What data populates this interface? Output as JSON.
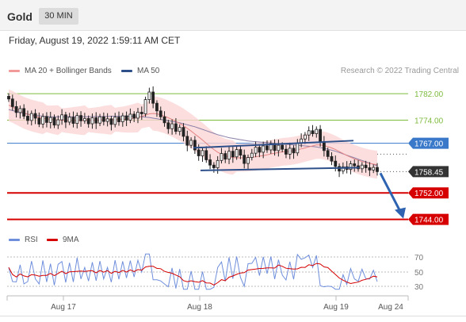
{
  "header": {
    "title": "Gold",
    "timeframe": "30 MIN"
  },
  "timestamp": "Friday, August 19, 2022 1:59:11 AM CET",
  "legend": [
    {
      "label": "MA 20 + Bollinger Bands",
      "color": "#f29a9a"
    },
    {
      "label": "MA 50",
      "color": "#2d4f8a"
    }
  ],
  "credit": "Research © 2022 Trading Central",
  "price_levels": [
    {
      "value": "1782.00",
      "kind": "resistance-minor",
      "color": "#7dbb3d"
    },
    {
      "value": "1774.00",
      "kind": "resistance-minor",
      "color": "#7dbb3d"
    },
    {
      "value": "1767.00",
      "kind": "pivot",
      "color": "#3a78c9"
    },
    {
      "value": "1758.45",
      "kind": "last-price",
      "color": "#333333"
    },
    {
      "value": "1752.00",
      "kind": "support",
      "color": "#d60000"
    },
    {
      "value": "1744.00",
      "kind": "support",
      "color": "#d60000"
    }
  ],
  "rsi": {
    "legend": [
      {
        "label": "RSI",
        "color": "#6f8fdc"
      },
      {
        "label": "9MA",
        "color": "#d60000"
      }
    ],
    "levels": [
      "70",
      "50",
      "30"
    ]
  },
  "x_axis": [
    "Aug 17",
    "Aug 18",
    "Aug 19",
    "Aug 24"
  ],
  "chart_data": {
    "type": "candlestick",
    "instrument": "Gold",
    "interval": "30 MIN",
    "last_price": 1758.45,
    "ylim": [
      1741.5,
      1787.3
    ],
    "price_levels": [
      1782.0,
      1774.0,
      1767.0,
      1752.0,
      1744.0
    ],
    "x_ticks": [
      "Aug 17",
      "Aug 18",
      "Aug 19",
      "Aug 24"
    ],
    "closes": [
      1780.4,
      1778.1,
      1776.3,
      1777.5,
      1775.2,
      1773.9,
      1776.0,
      1774.6,
      1772.8,
      1775.1,
      1773.3,
      1774.8,
      1772.5,
      1774.1,
      1775.6,
      1773.4,
      1774.9,
      1773.0,
      1775.4,
      1773.8,
      1774.5,
      1772.9,
      1774.7,
      1773.1,
      1775.0,
      1773.6,
      1774.4,
      1772.7,
      1774.9,
      1773.5,
      1775.3,
      1774.0,
      1775.8,
      1774.6,
      1776.4,
      1775.9,
      1780.2,
      1782.5,
      1779.1,
      1776.8,
      1775.0,
      1773.2,
      1771.4,
      1772.9,
      1770.6,
      1771.8,
      1769.1,
      1766.4,
      1767.9,
      1765.0,
      1763.2,
      1764.8,
      1762.0,
      1760.4,
      1759.6,
      1761.8,
      1763.9,
      1762.2,
      1764.6,
      1762.9,
      1765.1,
      1763.4,
      1760.9,
      1762.7,
      1764.0,
      1765.8,
      1764.3,
      1766.2,
      1765.0,
      1766.9,
      1764.8,
      1766.4,
      1765.2,
      1763.7,
      1765.5,
      1764.1,
      1767.0,
      1768.3,
      1769.5,
      1770.8,
      1769.9,
      1771.2,
      1767.5,
      1764.8,
      1763.0,
      1761.6,
      1760.0,
      1758.6,
      1759.9,
      1759.1,
      1760.8,
      1760.2,
      1759.3,
      1760.4,
      1759.6,
      1758.9,
      1759.7,
      1758.45
    ],
    "ma20": [
      1778.5,
      1778.0,
      1777.4,
      1776.8,
      1776.2,
      1775.8,
      1775.4,
      1775.1,
      1774.8,
      1774.6,
      1774.4,
      1774.2,
      1774.1,
      1774.0,
      1774.0,
      1773.9,
      1773.9,
      1773.9,
      1773.9,
      1773.9,
      1774.0,
      1774.0,
      1774.0,
      1774.0,
      1774.0,
      1774.1,
      1774.1,
      1774.1,
      1774.1,
      1774.2,
      1774.2,
      1774.3,
      1774.4,
      1774.6,
      1774.8,
      1775.1,
      1775.5,
      1775.9,
      1776.0,
      1775.9,
      1775.6,
      1775.2,
      1774.7,
      1774.2,
      1773.6,
      1773.0,
      1772.3,
      1771.5,
      1770.7,
      1769.8,
      1768.9,
      1768.0,
      1767.0,
      1766.0,
      1765.1,
      1764.3,
      1763.7,
      1763.2,
      1762.9,
      1762.7,
      1762.6,
      1762.6,
      1762.6,
      1762.7,
      1762.8,
      1762.9,
      1763.1,
      1763.3,
      1763.5,
      1763.8,
      1764.0,
      1764.2,
      1764.4,
      1764.5,
      1764.6,
      1764.8,
      1765.0,
      1765.3,
      1765.6,
      1765.9,
      1766.2,
      1766.5,
      1766.5,
      1766.3,
      1766.0,
      1765.6,
      1765.1,
      1764.5,
      1763.9,
      1763.3,
      1762.8,
      1762.3,
      1761.9,
      1761.5,
      1761.2,
      1760.9,
      1760.7,
      1760.5
    ],
    "ma50": [
      1777.2,
      1776.9,
      1776.6,
      1776.3,
      1776.0,
      1775.8,
      1775.6,
      1775.4,
      1775.3,
      1775.2,
      1775.1,
      1775.0,
      1775.0,
      1775.0,
      1775.0,
      1775.0,
      1775.0,
      1775.0,
      1775.0,
      1775.0,
      1775.0,
      1775.0,
      1775.1,
      1775.1,
      1775.1,
      1775.1,
      1775.1,
      1775.2,
      1775.2,
      1775.2,
      1775.2,
      1775.2,
      1775.2,
      1775.2,
      1775.1,
      1775.0,
      1774.9,
      1774.8,
      1774.6,
      1774.4,
      1774.2,
      1774.0,
      1773.8,
      1773.6,
      1773.4,
      1773.2,
      1772.9,
      1772.6,
      1772.3,
      1772.0,
      1771.6,
      1771.2,
      1770.8,
      1770.4,
      1770.0,
      1769.6,
      1769.3,
      1769.0,
      1768.7,
      1768.5,
      1768.3,
      1768.1,
      1767.9,
      1767.7,
      1767.6,
      1767.5,
      1767.4,
      1767.3,
      1767.2,
      1767.1,
      1767.0,
      1766.9,
      1766.8,
      1766.7,
      1766.6,
      1766.5,
      1766.4,
      1766.3,
      1766.2,
      1766.1,
      1766.0,
      1765.9,
      1765.7,
      1765.5,
      1765.2,
      1764.9,
      1764.6,
      1764.2,
      1763.8,
      1763.4,
      1763.0,
      1762.6,
      1762.2,
      1761.8,
      1761.4,
      1761.0,
      1760.6,
      1760.2
    ],
    "channel_upper": [
      [
        1764.9,
        1766.9
      ],
      [
        1770.2,
        1771.7
      ]
    ],
    "channel_lower": [
      [
        1759.5,
        1761.2
      ],
      [
        1759.4,
        1762.3
      ]
    ],
    "projection": {
      "from": 1758.45,
      "to": 1744.0
    },
    "rsi_levels": [
      70,
      50,
      30
    ]
  }
}
